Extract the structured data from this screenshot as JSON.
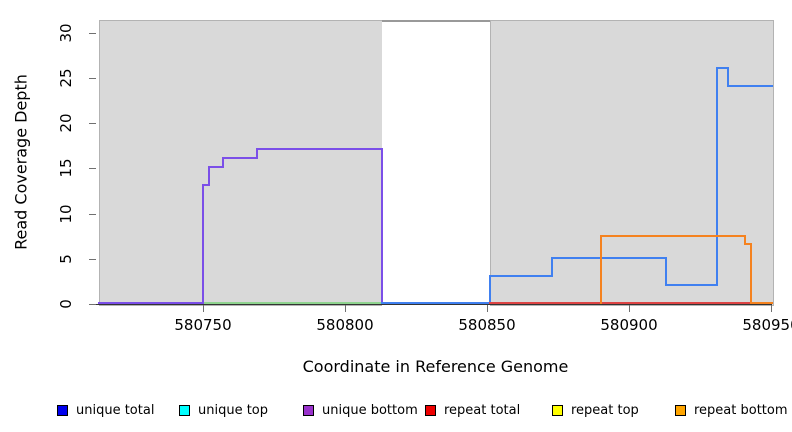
{
  "chart_data": {
    "type": "step-line",
    "title": "",
    "xlabel": "Coordinate in Reference Genome",
    "ylabel": "Read Coverage Depth",
    "xlim": [
      580713,
      580951
    ],
    "ylim": [
      0,
      31
    ],
    "grid": false,
    "legend_position": "bottom",
    "xticks": [
      {
        "value": 580750,
        "label": "580750"
      },
      {
        "value": 580800,
        "label": "580800"
      },
      {
        "value": 580850,
        "label": "580850"
      },
      {
        "value": 580900,
        "label": "580900"
      },
      {
        "value": 580950,
        "label": "580950"
      }
    ],
    "yticks": [
      {
        "value": 0,
        "label": "0"
      },
      {
        "value": 5,
        "label": "5"
      },
      {
        "value": 10,
        "label": "10"
      },
      {
        "value": 15,
        "label": "15"
      },
      {
        "value": 20,
        "label": "20"
      },
      {
        "value": 25,
        "label": "25"
      },
      {
        "value": 30,
        "label": "30"
      }
    ],
    "background_regions": [
      {
        "name": "shaded-left",
        "from": 580713,
        "to": 580813,
        "color": "#D9D9D9",
        "border": "#B3B3B3"
      },
      {
        "name": "gap-band",
        "from": 580813,
        "to": 580851,
        "color": "#FFFFFF",
        "top_border": "#999999"
      },
      {
        "name": "shaded-right",
        "from": 580851,
        "to": 580951,
        "color": "#D9D9D9",
        "border": "#B3B3B3"
      }
    ],
    "legend": [
      {
        "label": "unique total",
        "color": "#0000EE"
      },
      {
        "label": "unique top",
        "color": "#00FFFF"
      },
      {
        "label": "unique bottom",
        "color": "#9932CC"
      },
      {
        "label": "repeat total",
        "color": "#EE0000"
      },
      {
        "label": "repeat top",
        "color": "#FFFF00"
      },
      {
        "label": "repeat bottom",
        "color": "#FFA500"
      }
    ],
    "series": [
      {
        "name": "top-strand zero segment",
        "plot_color": "#8FD48F",
        "points": [
          [
            580750,
            0
          ],
          [
            580813,
            0
          ]
        ]
      },
      {
        "name": "unique bottom",
        "plot_color": "#7B4FE8",
        "points": [
          [
            580713,
            0
          ],
          [
            580750,
            0
          ],
          [
            580750,
            13
          ],
          [
            580752,
            13
          ],
          [
            580752,
            15
          ],
          [
            580757,
            15
          ],
          [
            580757,
            16
          ],
          [
            580769,
            16
          ],
          [
            580769,
            17
          ],
          [
            580813,
            17
          ],
          [
            580813,
            0
          ],
          [
            580851,
            0
          ]
        ]
      },
      {
        "name": "unique total",
        "plot_color": "#4080F0",
        "points": [
          [
            580813,
            0
          ],
          [
            580851,
            0
          ],
          [
            580851,
            3
          ],
          [
            580873,
            3
          ],
          [
            580873,
            5
          ],
          [
            580913,
            5
          ],
          [
            580913,
            2
          ],
          [
            580931,
            2
          ],
          [
            580931,
            26
          ],
          [
            580935,
            26
          ],
          [
            580935,
            24
          ],
          [
            580951,
            24
          ]
        ]
      },
      {
        "name": "repeat total",
        "plot_color": "#DD4444",
        "points": [
          [
            580851,
            0
          ],
          [
            580951,
            0
          ]
        ]
      },
      {
        "name": "repeat bottom",
        "plot_color": "#F5821F",
        "points": [
          [
            580890,
            0
          ],
          [
            580890,
            7.4
          ],
          [
            580941,
            7.4
          ],
          [
            580941,
            6.5
          ],
          [
            580943,
            6.5
          ],
          [
            580943,
            0
          ],
          [
            580951,
            0
          ]
        ]
      }
    ]
  }
}
